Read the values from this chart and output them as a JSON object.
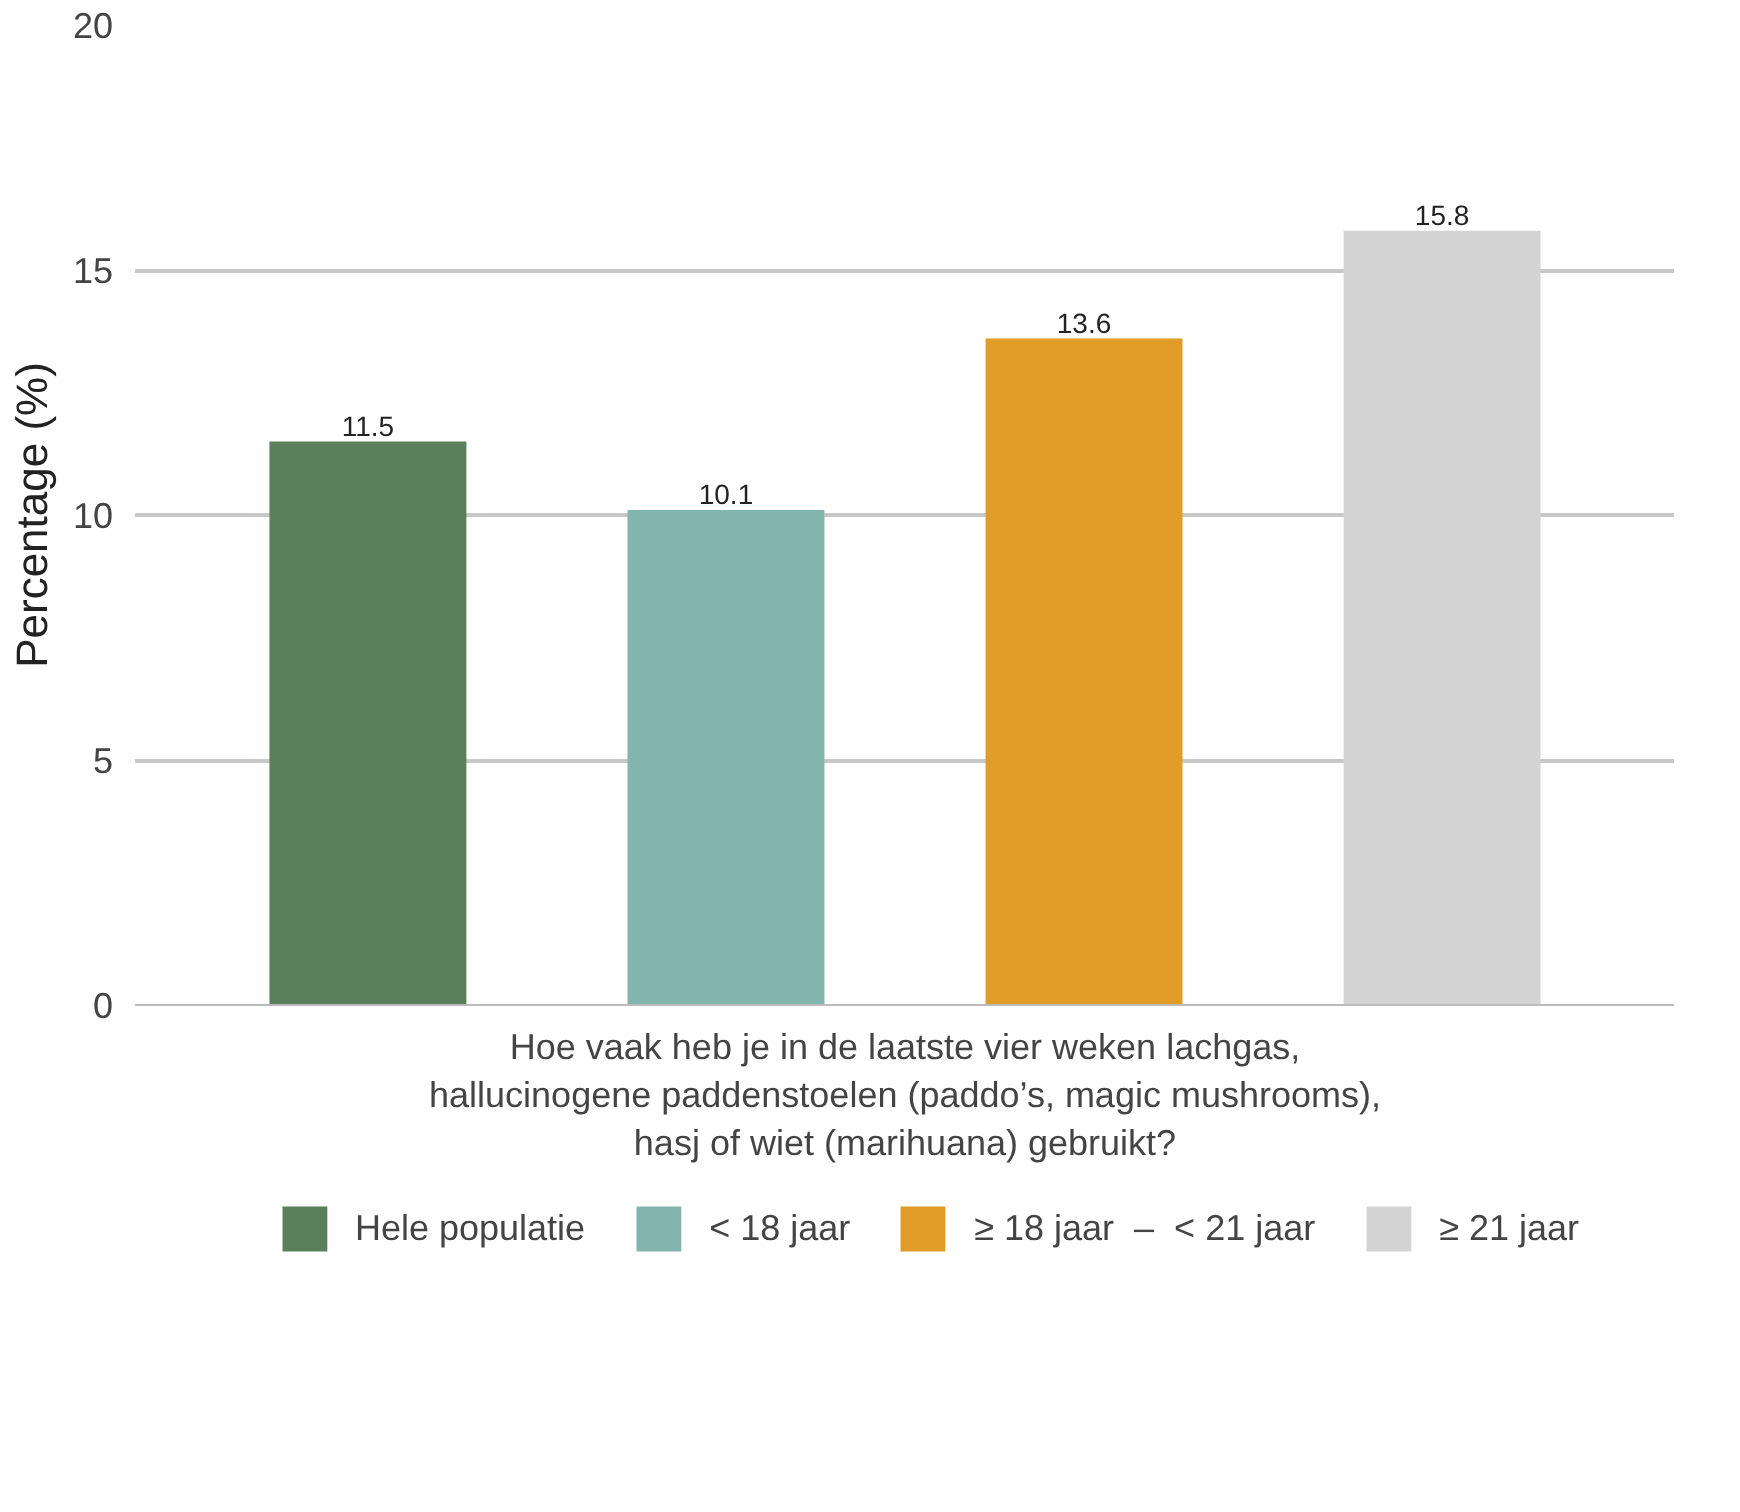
{
  "chart_data": {
    "type": "bar",
    "categories": [
      null
    ],
    "xlabel": "Hoe vaak heb je in de laatste vier weken lachgas,\nhallucinogene paddenstoelen (paddo’s, magic mushrooms),\nhasj of wiet (marihuana) gebruikt?",
    "ylabel": "Percentage (%)",
    "series": [
      {
        "name": "Hele populatie",
        "color": "#5a7f5a",
        "values": [
          11.5
        ]
      },
      {
        "name": "< 18 jaar",
        "color": "#82b5ae",
        "values": [
          10.1
        ]
      },
      {
        "name": "≥ 18 jaar  –  < 21 jaar",
        "color": "#e09c26",
        "values": [
          13.6
        ]
      },
      {
        "name": "≥ 21 jaar",
        "color": "#d3d3d3",
        "values": [
          15.8
        ]
      }
    ],
    "ylim": [
      0,
      20
    ],
    "yticks": [
      0,
      5,
      10,
      15,
      20
    ],
    "grid": "y",
    "legend": "bottom",
    "data_labels": true
  }
}
